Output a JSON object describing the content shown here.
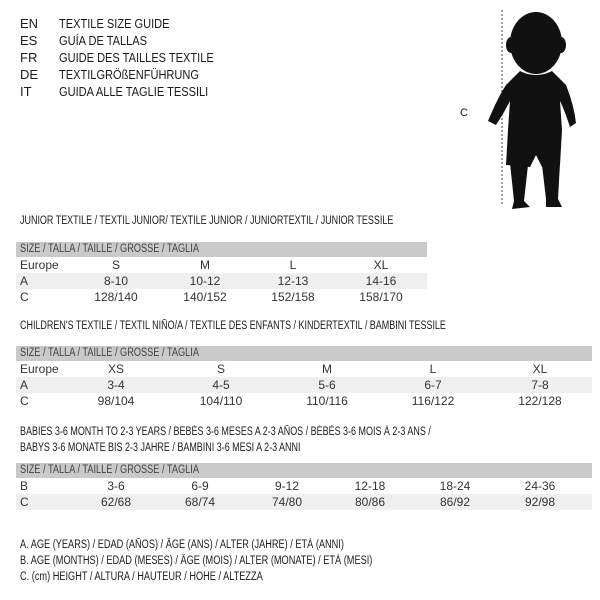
{
  "titles": [
    {
      "code": "EN",
      "text": "TEXTILE SIZE GUIDE"
    },
    {
      "code": "ES",
      "text": "GUÍA DE TALLAS"
    },
    {
      "code": "FR",
      "text": "GUIDE DES TAILLES TEXTILE"
    },
    {
      "code": "DE",
      "text": "TEXTILGRÖßENFÜHRUNG"
    },
    {
      "code": "IT",
      "text": "GUIDA ALLE TAGLIE TESSILI"
    }
  ],
  "figure": {
    "label": "C",
    "icon": "child-silhouette-icon"
  },
  "size_header": "SIZE / TALLA / TAILLE / GRÖSSE / TAGLIA",
  "junior": {
    "title": "JUNIOR TEXTILE / TEXTIL JUNIOR/ TEXTILE JUNIOR / JUNIORTEXTIL / JUNIOR TESSILE",
    "rows": [
      {
        "label": "Europe",
        "cells": [
          "S",
          "M",
          "L",
          "XL"
        ]
      },
      {
        "label": "A",
        "cells": [
          "8-10",
          "10-12",
          "12-13",
          "14-16"
        ]
      },
      {
        "label": "C",
        "cells": [
          "128/140",
          "140/152",
          "152/158",
          "158/170"
        ]
      }
    ]
  },
  "children": {
    "title": "CHILDREN'S TEXTILE / TEXTIL NIÑO/A / TEXTILE DES ENFANTS / KINDERTEXTIL / BAMBINI TESSILE",
    "rows": [
      {
        "label": "Europe",
        "cells": [
          "XS",
          "S",
          "M",
          "L",
          "XL"
        ]
      },
      {
        "label": "A",
        "cells": [
          "3-4",
          "4-5",
          "5-6",
          "6-7",
          "7-8"
        ]
      },
      {
        "label": "C",
        "cells": [
          "98/104",
          "104/110",
          "110/116",
          "116/122",
          "122/128"
        ]
      }
    ]
  },
  "babies": {
    "title_line1": "BABIES 3-6 MONTH TO 2-3 YEARS / BEBÉS 3-6 MESES A 2-3 AÑOS / BÉBÉS 3-6 MOIS À 2-3 ANS /",
    "title_line2": "BABYS 3-6 MONATE BIS 2-3 JAHRE / BAMBINI 3-6 MESI A 2-3 ANNI",
    "rows": [
      {
        "label": "B",
        "cells": [
          "3-6",
          "6-9",
          "9-12",
          "12-18",
          "18-24",
          "24-36"
        ]
      },
      {
        "label": "C",
        "cells": [
          "62/68",
          "68/74",
          "74/80",
          "80/86",
          "86/92",
          "92/98"
        ]
      }
    ]
  },
  "legend": [
    "A. AGE (YEARS) / EDAD (AÑOS) / ÂGE (ANS) / ALTER (JAHRE) / ETÀ (ANNI)",
    "B. AGE (MONTHS) / EDAD (MESES) / ÂGE (MOIS) / ALTER (MONATE) / ETÀ (MESI)",
    "C. (cm) HEIGHT / ALTURA / HAUTEUR / HÖHE / ALTEZZA"
  ]
}
